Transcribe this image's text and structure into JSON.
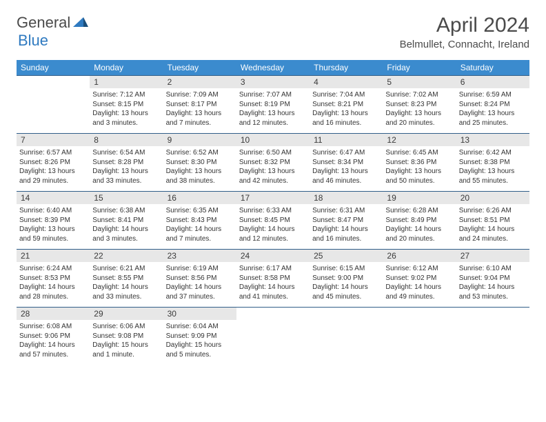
{
  "brand": {
    "part1": "General",
    "part2": "Blue"
  },
  "title": "April 2024",
  "location": "Belmullet, Connacht, Ireland",
  "colors": {
    "header_bg": "#3b8bce",
    "header_text": "#ffffff",
    "daynum_bg": "#e7e7e7",
    "border": "#2f5d88",
    "brand_gray": "#4a4a4a",
    "brand_blue": "#2f7ac0"
  },
  "weekdays": [
    "Sunday",
    "Monday",
    "Tuesday",
    "Wednesday",
    "Thursday",
    "Friday",
    "Saturday"
  ],
  "first_weekday_index": 1,
  "days": [
    {
      "n": 1,
      "sunrise": "7:12 AM",
      "sunset": "8:15 PM",
      "daylight": "13 hours and 3 minutes."
    },
    {
      "n": 2,
      "sunrise": "7:09 AM",
      "sunset": "8:17 PM",
      "daylight": "13 hours and 7 minutes."
    },
    {
      "n": 3,
      "sunrise": "7:07 AM",
      "sunset": "8:19 PM",
      "daylight": "13 hours and 12 minutes."
    },
    {
      "n": 4,
      "sunrise": "7:04 AM",
      "sunset": "8:21 PM",
      "daylight": "13 hours and 16 minutes."
    },
    {
      "n": 5,
      "sunrise": "7:02 AM",
      "sunset": "8:23 PM",
      "daylight": "13 hours and 20 minutes."
    },
    {
      "n": 6,
      "sunrise": "6:59 AM",
      "sunset": "8:24 PM",
      "daylight": "13 hours and 25 minutes."
    },
    {
      "n": 7,
      "sunrise": "6:57 AM",
      "sunset": "8:26 PM",
      "daylight": "13 hours and 29 minutes."
    },
    {
      "n": 8,
      "sunrise": "6:54 AM",
      "sunset": "8:28 PM",
      "daylight": "13 hours and 33 minutes."
    },
    {
      "n": 9,
      "sunrise": "6:52 AM",
      "sunset": "8:30 PM",
      "daylight": "13 hours and 38 minutes."
    },
    {
      "n": 10,
      "sunrise": "6:50 AM",
      "sunset": "8:32 PM",
      "daylight": "13 hours and 42 minutes."
    },
    {
      "n": 11,
      "sunrise": "6:47 AM",
      "sunset": "8:34 PM",
      "daylight": "13 hours and 46 minutes."
    },
    {
      "n": 12,
      "sunrise": "6:45 AM",
      "sunset": "8:36 PM",
      "daylight": "13 hours and 50 minutes."
    },
    {
      "n": 13,
      "sunrise": "6:42 AM",
      "sunset": "8:38 PM",
      "daylight": "13 hours and 55 minutes."
    },
    {
      "n": 14,
      "sunrise": "6:40 AM",
      "sunset": "8:39 PM",
      "daylight": "13 hours and 59 minutes."
    },
    {
      "n": 15,
      "sunrise": "6:38 AM",
      "sunset": "8:41 PM",
      "daylight": "14 hours and 3 minutes."
    },
    {
      "n": 16,
      "sunrise": "6:35 AM",
      "sunset": "8:43 PM",
      "daylight": "14 hours and 7 minutes."
    },
    {
      "n": 17,
      "sunrise": "6:33 AM",
      "sunset": "8:45 PM",
      "daylight": "14 hours and 12 minutes."
    },
    {
      "n": 18,
      "sunrise": "6:31 AM",
      "sunset": "8:47 PM",
      "daylight": "14 hours and 16 minutes."
    },
    {
      "n": 19,
      "sunrise": "6:28 AM",
      "sunset": "8:49 PM",
      "daylight": "14 hours and 20 minutes."
    },
    {
      "n": 20,
      "sunrise": "6:26 AM",
      "sunset": "8:51 PM",
      "daylight": "14 hours and 24 minutes."
    },
    {
      "n": 21,
      "sunrise": "6:24 AM",
      "sunset": "8:53 PM",
      "daylight": "14 hours and 28 minutes."
    },
    {
      "n": 22,
      "sunrise": "6:21 AM",
      "sunset": "8:55 PM",
      "daylight": "14 hours and 33 minutes."
    },
    {
      "n": 23,
      "sunrise": "6:19 AM",
      "sunset": "8:56 PM",
      "daylight": "14 hours and 37 minutes."
    },
    {
      "n": 24,
      "sunrise": "6:17 AM",
      "sunset": "8:58 PM",
      "daylight": "14 hours and 41 minutes."
    },
    {
      "n": 25,
      "sunrise": "6:15 AM",
      "sunset": "9:00 PM",
      "daylight": "14 hours and 45 minutes."
    },
    {
      "n": 26,
      "sunrise": "6:12 AM",
      "sunset": "9:02 PM",
      "daylight": "14 hours and 49 minutes."
    },
    {
      "n": 27,
      "sunrise": "6:10 AM",
      "sunset": "9:04 PM",
      "daylight": "14 hours and 53 minutes."
    },
    {
      "n": 28,
      "sunrise": "6:08 AM",
      "sunset": "9:06 PM",
      "daylight": "14 hours and 57 minutes."
    },
    {
      "n": 29,
      "sunrise": "6:06 AM",
      "sunset": "9:08 PM",
      "daylight": "15 hours and 1 minute."
    },
    {
      "n": 30,
      "sunrise": "6:04 AM",
      "sunset": "9:09 PM",
      "daylight": "15 hours and 5 minutes."
    }
  ]
}
